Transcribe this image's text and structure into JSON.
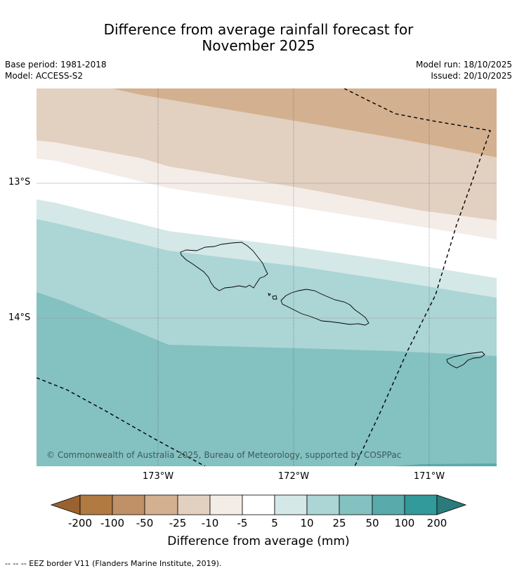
{
  "title": {
    "line1": "Difference from average rainfall forecast for",
    "line2": "November 2025"
  },
  "meta": {
    "base_period": "Base period: 1981-2018",
    "model": "Model: ACCESS-S2",
    "model_run": "Model run: 18/10/2025",
    "issued": "Issued: 20/10/2025"
  },
  "map": {
    "longitude_labels": [
      "173°W",
      "172°W",
      "171°W"
    ],
    "latitude_labels": [
      "13°S",
      "14°S"
    ],
    "credit": "© Commonwealth of Australia 2025, Bureau of Meteorology, supported by COSPPac"
  },
  "colorbar": {
    "ticks": [
      "-200",
      "-100",
      "-50",
      "-25",
      "-10",
      "-5",
      "5",
      "10",
      "25",
      "50",
      "100",
      "200"
    ],
    "colors": [
      "#9a6231",
      "#b07a42",
      "#c09067",
      "#d3b08f",
      "#e2d0c0",
      "#f4ece7",
      "#ffffff",
      "#d4e8e7",
      "#acd5d5",
      "#84c1c1",
      "#59abab",
      "#33999a",
      "#2b7b7c"
    ],
    "label": "Difference from average (mm)"
  },
  "footnote": "--  --  -- EEZ border V11 (Flanders Marine Institute, 2019)."
}
